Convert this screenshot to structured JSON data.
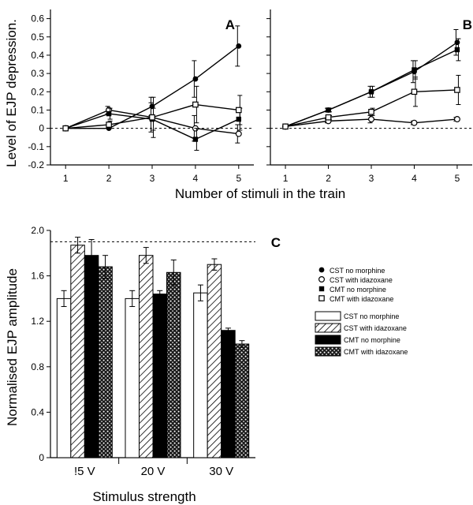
{
  "chart_data": [
    {
      "panel": "A",
      "type": "line",
      "ylabel": "Level of EJP depression.",
      "xticks": [
        1,
        2,
        3,
        4,
        5
      ],
      "yticks": [
        -0.2,
        -0.1,
        0,
        0.1,
        0.2,
        0.3,
        0.4,
        0.5,
        0.6
      ],
      "ylim": [
        -0.2,
        0.65
      ],
      "reference_line_y": 0,
      "series": [
        {
          "key": "cst_no",
          "x": [
            1,
            2,
            3,
            4,
            5
          ],
          "y": [
            0.0,
            0.0,
            0.12,
            0.27,
            0.45
          ],
          "err": [
            0,
            0,
            0.05,
            0.1,
            0.11
          ],
          "marker": "filled-circle"
        },
        {
          "key": "cst_ida",
          "x": [
            1,
            2,
            3,
            4,
            5
          ],
          "y": [
            0.0,
            0.1,
            0.06,
            0.0,
            -0.03
          ],
          "err": [
            0,
            0.02,
            0.08,
            0.07,
            0.05
          ],
          "marker": "open-circle"
        },
        {
          "key": "cmt_no",
          "x": [
            1,
            2,
            3,
            4,
            5
          ],
          "y": [
            0.0,
            0.08,
            0.05,
            -0.06,
            0.05
          ],
          "err": [
            0,
            0.03,
            0.06,
            0.06,
            0.06
          ],
          "marker": "filled-square"
        },
        {
          "key": "cmt_ida",
          "x": [
            1,
            2,
            3,
            4,
            5
          ],
          "y": [
            0.0,
            0.02,
            0.06,
            0.13,
            0.1
          ],
          "err": [
            0,
            0.02,
            0.11,
            0.1,
            0.08
          ],
          "marker": "open-square"
        }
      ]
    },
    {
      "panel": "B",
      "type": "line",
      "xticks": [
        1,
        2,
        3,
        4,
        5
      ],
      "ylim": [
        -0.2,
        0.65
      ],
      "reference_line_y": 0,
      "series": [
        {
          "key": "cst_no",
          "x": [
            1,
            2,
            3,
            4,
            5
          ],
          "y": [
            0.01,
            0.1,
            0.2,
            0.31,
            0.47
          ],
          "err": [
            0,
            0.01,
            0.03,
            0.06,
            0.07
          ],
          "marker": "filled-circle"
        },
        {
          "key": "cst_ida",
          "x": [
            1,
            2,
            3,
            4,
            5
          ],
          "y": [
            0.01,
            0.04,
            0.05,
            0.03,
            0.05
          ],
          "err": [
            0,
            0.01,
            0.02,
            0.01,
            0.01
          ],
          "marker": "open-circle"
        },
        {
          "key": "cmt_no",
          "x": [
            1,
            2,
            3,
            4,
            5
          ],
          "y": [
            0.01,
            0.1,
            0.2,
            0.32,
            0.43
          ],
          "err": [
            0,
            0.01,
            0.03,
            0.05,
            0.06
          ],
          "marker": "filled-square"
        },
        {
          "key": "cmt_ida",
          "x": [
            1,
            2,
            3,
            4,
            5
          ],
          "y": [
            0.01,
            0.06,
            0.09,
            0.2,
            0.21
          ],
          "err": [
            0,
            0.01,
            0.02,
            0.08,
            0.08
          ],
          "marker": "open-square"
        }
      ]
    },
    {
      "panel": "C",
      "type": "bar",
      "xlabel": "Stimulus strength",
      "ylabel": "Normalised EJP amplitude",
      "categories": [
        "!5 V",
        "20 V",
        "30 V"
      ],
      "yticks": [
        0,
        0.4,
        0.8,
        1.2,
        1.6,
        2.0
      ],
      "ytick_labels": [
        "0",
        "0.4",
        "0.8",
        "1.2",
        "1.6",
        "2.0"
      ],
      "ylim": [
        0,
        2.0
      ],
      "reference_line_y": 1.9,
      "series": [
        {
          "name": "CST no morphine",
          "fill": "white",
          "values": [
            1.4,
            1.4,
            1.45
          ],
          "err": [
            0.07,
            0.07,
            0.07
          ]
        },
        {
          "name": "CST with idazoxane",
          "fill": "hatch",
          "values": [
            1.87,
            1.78,
            1.7
          ],
          "err": [
            0.07,
            0.07,
            0.05
          ]
        },
        {
          "name": "CMT no morphine",
          "fill": "black",
          "values": [
            1.78,
            1.44,
            1.12
          ],
          "err": [
            0.14,
            0.03,
            0.02
          ]
        },
        {
          "name": "CMT with idazoxane",
          "fill": "dotted",
          "values": [
            1.68,
            1.63,
            1.0
          ],
          "err": [
            0.1,
            0.11,
            0.03
          ]
        }
      ]
    }
  ],
  "shared_xlabel": "Number of stimuli in the train",
  "line_legend": [
    {
      "key": "cst_no",
      "label": "CST no morphine",
      "marker": "filled-circle"
    },
    {
      "key": "cst_ida",
      "label": "CST with idazoxane",
      "marker": "open-circle"
    },
    {
      "key": "cmt_no",
      "label": "CMT no morphine",
      "marker": "filled-square"
    },
    {
      "key": "cmt_ida",
      "label": "CMT with idazoxane",
      "marker": "open-square"
    }
  ],
  "colors": {
    "ink": "#000000",
    "background": "#ffffff"
  }
}
